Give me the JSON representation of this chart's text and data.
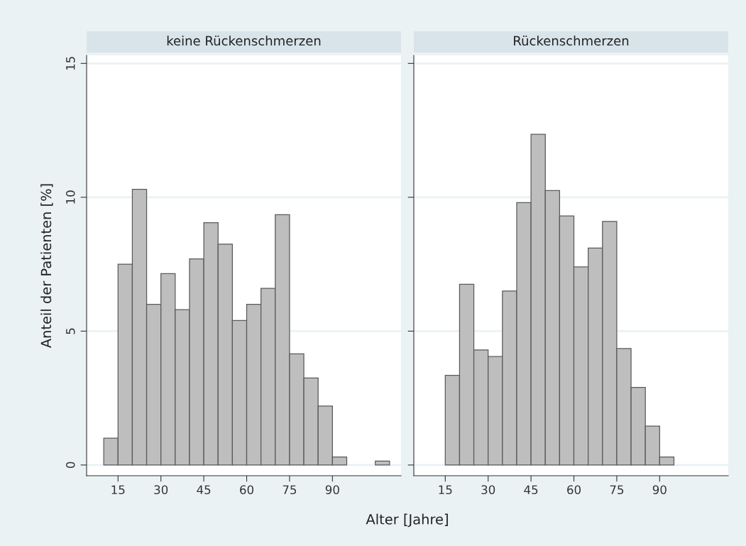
{
  "chart_data": [
    {
      "type": "histogram",
      "title": "keine Rückenschmerzen",
      "xlabel": "Alter [Jahre]",
      "ylabel": "Anteil der Patienten [%]",
      "color": "#bebebe",
      "bins": [
        10,
        15,
        20,
        25,
        30,
        35,
        40,
        45,
        50,
        55,
        60,
        65,
        70,
        75,
        80,
        85,
        90,
        95,
        100,
        105,
        110
      ],
      "values": [
        1.0,
        7.5,
        10.3,
        6.0,
        7.15,
        5.8,
        7.7,
        9.05,
        8.25,
        5.4,
        6.0,
        6.6,
        9.35,
        4.15,
        3.25,
        2.2,
        0.3,
        0,
        0,
        0.15
      ],
      "xlim": [
        4,
        114
      ],
      "ylim": [
        -0.4,
        15.3
      ],
      "xticks": [
        15,
        30,
        45,
        60,
        75,
        90
      ],
      "yticks": [
        0,
        5,
        10,
        15
      ],
      "grid": "y"
    },
    {
      "type": "histogram",
      "title": "Rückenschmerzen",
      "color": "#bebebe",
      "bins": [
        15,
        20,
        25,
        30,
        35,
        40,
        45,
        50,
        55,
        60,
        65,
        70,
        75,
        80,
        85,
        90,
        95
      ],
      "values": [
        3.35,
        6.75,
        4.3,
        4.05,
        6.5,
        9.8,
        12.35,
        10.25,
        9.3,
        7.4,
        8.1,
        9.1,
        4.35,
        2.9,
        1.45,
        0.3
      ],
      "xlim": [
        4,
        114
      ],
      "ylim": [
        -0.4,
        15.3
      ],
      "xticks": [
        15,
        30,
        45,
        60,
        75,
        90
      ],
      "yticks": [
        0,
        5,
        10,
        15
      ],
      "grid": "y",
      "tick_labels": "x"
    }
  ]
}
